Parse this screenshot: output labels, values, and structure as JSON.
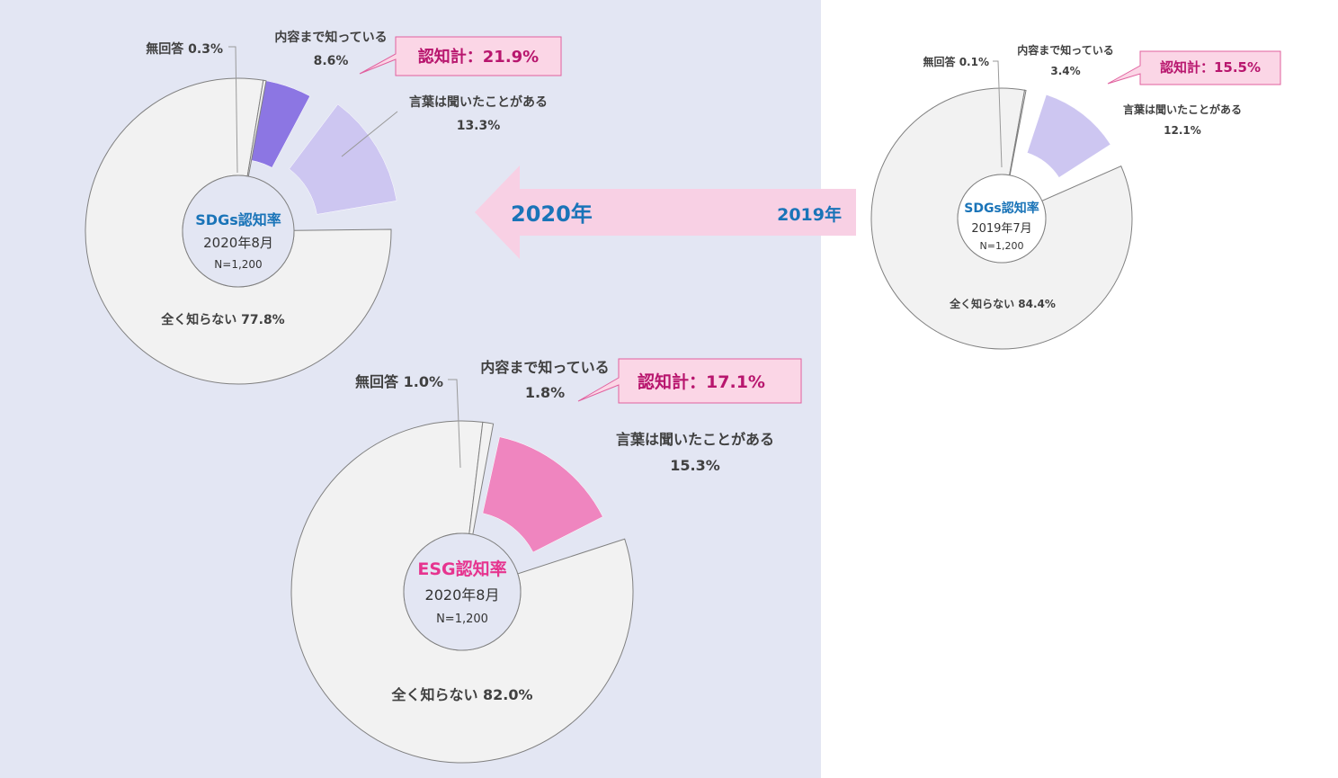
{
  "colors": {
    "panel_bg": "#e3e6f3",
    "sdgs_known": "#8c76e3",
    "sdgs_heard": "#cdc6f1",
    "esg_known": "#e6348f",
    "esg_heard": "#ef85bf",
    "unknown": "#f2f2f2",
    "no_answer": "#f2f2f2",
    "arrow": "#f8d0e4",
    "sdgs_title": "#1a74b8",
    "esg_title": "#e6348f",
    "callout_text": "#b8166e",
    "callout_bg": "#fbd6e6"
  },
  "arrow": {
    "label_new": "2020年",
    "label_old": "2019年"
  },
  "chart_data": [
    {
      "id": "sdgs2020",
      "type": "pie",
      "center_title": "SDGs認知率",
      "center_date": "2020年8月",
      "center_n": "N=1,200",
      "callout": "認知計：21.9%",
      "slices": [
        {
          "label": "内容まで知っている",
          "value_text": "8.6%",
          "value": 8.6
        },
        {
          "label": "言葉は聞いたことがある",
          "value_text": "13.3%",
          "value": 13.3
        },
        {
          "label": "全く知らない 77.8%",
          "value": 77.8
        },
        {
          "label": "無回答 0.3%",
          "value": 0.3
        }
      ]
    },
    {
      "id": "sdgs2019",
      "type": "pie",
      "center_title": "SDGs認知率",
      "center_date": "2019年7月",
      "center_n": "N=1,200",
      "callout": "認知計：15.5%",
      "slices": [
        {
          "label": "内容まで知っている",
          "value_text": "3.4%",
          "value": 3.4
        },
        {
          "label": "言葉は聞いたことがある",
          "value_text": "12.1%",
          "value": 12.1
        },
        {
          "label": "全く知らない 84.4%",
          "value": 84.4
        },
        {
          "label": "無回答 0.1%",
          "value": 0.1
        }
      ]
    },
    {
      "id": "esg2020",
      "type": "pie",
      "center_title": "ESG認知率",
      "center_date": "2020年8月",
      "center_n": "N=1,200",
      "callout": "認知計：17.1%",
      "slices": [
        {
          "label": "内容まで知っている",
          "value_text": "1.8%",
          "value": 1.8
        },
        {
          "label": "言葉は聞いたことがある",
          "value_text": "15.3%",
          "value": 15.3
        },
        {
          "label": "全く知らない 82.0%",
          "value": 82.0
        },
        {
          "label": "無回答 1.0%",
          "value": 1.0
        }
      ]
    }
  ]
}
